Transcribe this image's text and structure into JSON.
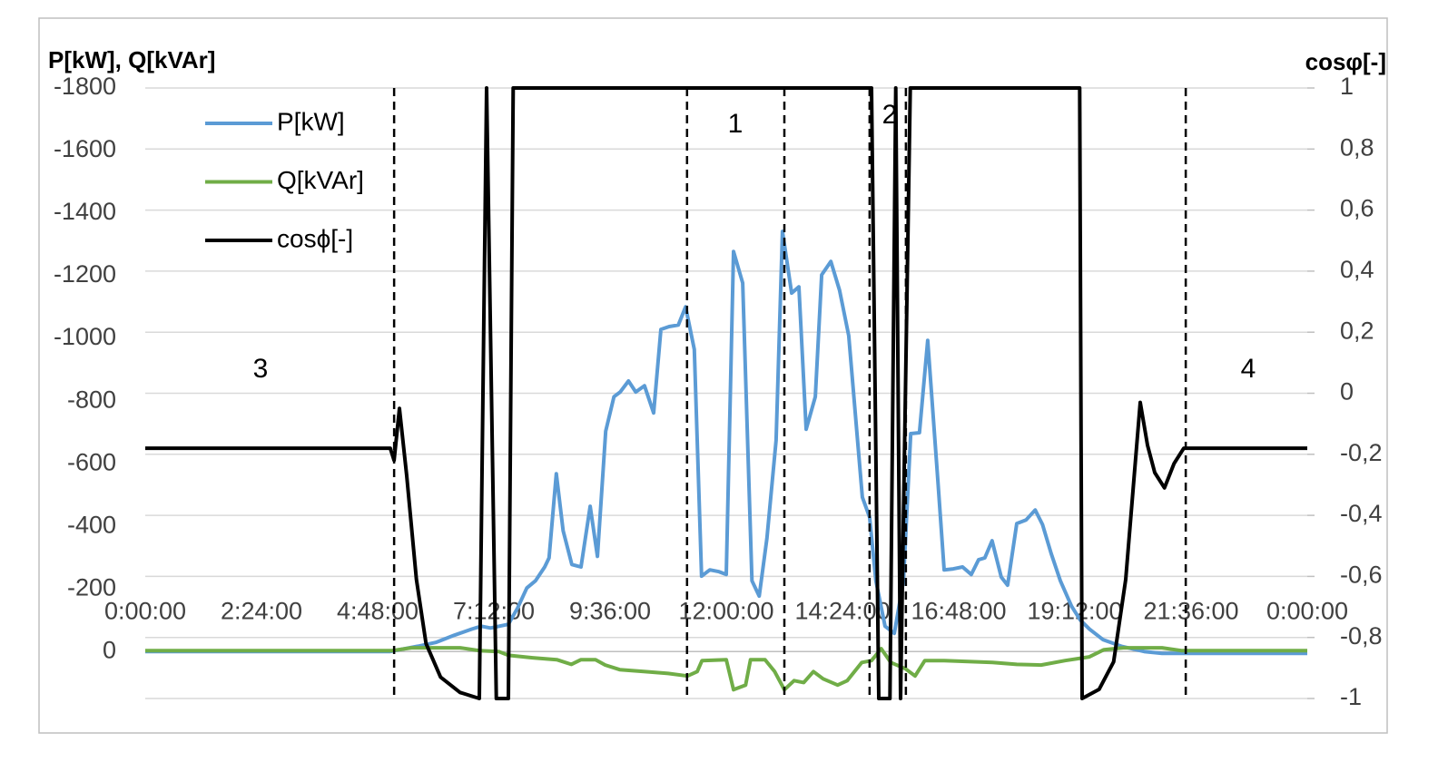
{
  "chart_data": {
    "type": "line",
    "y_label": "P[kW], Q[kVAr]",
    "y2_label": "cosφ[-]",
    "xlim": [
      0,
      24
    ],
    "xticks": [
      {
        "value": 0,
        "label": "0:00:00"
      },
      {
        "value": 2.4,
        "label": "2:24:00"
      },
      {
        "value": 4.8,
        "label": "4:48:00"
      },
      {
        "value": 7.2,
        "label": "7:12:00"
      },
      {
        "value": 9.6,
        "label": "9:36:00"
      },
      {
        "value": 12,
        "label": "12:00:00"
      },
      {
        "value": 14.4,
        "label": "14:24:00"
      },
      {
        "value": 16.8,
        "label": "16:48:00"
      },
      {
        "value": 19.2,
        "label": "19:12:00"
      },
      {
        "value": 21.6,
        "label": "21:36:00"
      },
      {
        "value": 24,
        "label": "0:00:00"
      }
    ],
    "ylim": [
      -1800,
      150
    ],
    "y_reversed": true,
    "yticks": [
      -1800,
      -1600,
      -1400,
      -1200,
      -1000,
      -800,
      -600,
      -400,
      -200,
      0
    ],
    "y2lim": [
      -1,
      1
    ],
    "y2ticks": [
      1,
      {
        "value": 0.8,
        "label": "0,8"
      },
      {
        "value": 0.6,
        "label": "0,6"
      },
      {
        "value": 0.4,
        "label": "0,4"
      },
      {
        "value": 0.2,
        "label": "0,2"
      },
      0,
      {
        "value": -0.2,
        "label": "-0,2"
      },
      {
        "value": -0.4,
        "label": "-0,4"
      },
      {
        "value": -0.6,
        "label": "-0,6"
      },
      {
        "value": -0.8,
        "label": "-0,8"
      },
      -1
    ],
    "grid": true,
    "legend": "upper left",
    "series": [
      {
        "name": "P[kW]",
        "color": "#5b9bd5",
        "x": [
          0,
          5.06,
          5.25,
          5.63,
          6.0,
          6.38,
          6.75,
          6.94,
          7.13,
          7.31,
          7.5,
          7.69,
          7.88,
          8.06,
          8.25,
          8.34,
          8.49,
          8.63,
          8.81,
          9.0,
          9.19,
          9.34,
          9.51,
          9.68,
          9.81,
          9.98,
          10.13,
          10.31,
          10.5,
          10.65,
          10.82,
          11.01,
          11.16,
          11.34,
          11.49,
          11.66,
          11.85,
          12.0,
          12.15,
          12.34,
          12.53,
          12.68,
          12.84,
          13.03,
          13.16,
          13.35,
          13.5,
          13.65,
          13.84,
          13.97,
          14.16,
          14.34,
          14.53,
          14.81,
          14.96,
          15.09,
          15.28,
          15.47,
          15.66,
          15.81,
          15.99,
          16.16,
          16.37,
          16.5,
          16.69,
          16.88,
          17.06,
          17.21,
          17.34,
          17.49,
          17.68,
          17.81,
          18.0,
          18.19,
          18.38,
          18.53,
          18.71,
          18.9,
          19.13,
          19.31,
          19.5,
          19.78,
          20.16,
          20.63,
          21.0,
          21.38,
          24
        ],
        "values": [
          0,
          0,
          -6,
          -17,
          -29,
          -52,
          -72,
          -81,
          -75,
          -81,
          -87,
          -139,
          -203,
          -226,
          -270,
          -299,
          -568,
          -386,
          -278,
          -270,
          -464,
          -304,
          -704,
          -814,
          -829,
          -864,
          -829,
          -849,
          -762,
          -1029,
          -1038,
          -1043,
          -1101,
          -965,
          -241,
          -261,
          -255,
          -246,
          -1278,
          -1177,
          -226,
          -177,
          -362,
          -675,
          -1342,
          -1145,
          -1165,
          -710,
          -814,
          -1203,
          -1246,
          -1154,
          -1009,
          -493,
          -429,
          -226,
          -81,
          -58,
          -226,
          -696,
          -699,
          -994,
          -545,
          -261,
          -264,
          -270,
          -246,
          -293,
          -299,
          -354,
          -238,
          -212,
          -409,
          -420,
          -452,
          -406,
          -313,
          -226,
          -145,
          -101,
          -72,
          -38,
          -17,
          0,
          6,
          6,
          6
        ]
      },
      {
        "name": "Q[kVAr]",
        "color": "#70ad47",
        "x": [
          0,
          5.1,
          5.5,
          6.5,
          6.9,
          7.3,
          7.5,
          8.0,
          8.5,
          8.8,
          9.0,
          9.3,
          9.5,
          9.8,
          10.3,
          10.8,
          11.2,
          11.4,
          11.5,
          12.0,
          12.15,
          12.4,
          12.5,
          12.8,
          13.0,
          13.2,
          13.4,
          13.6,
          13.8,
          14.0,
          14.3,
          14.5,
          14.8,
          15.0,
          15.2,
          15.4,
          15.7,
          15.9,
          16.1,
          16.5,
          17,
          17.5,
          18,
          18.5,
          19,
          19.5,
          19.8,
          20.2,
          20.6,
          21.0,
          21.4,
          24
        ],
        "values": [
          -3,
          -3,
          -12,
          -12,
          -3,
          0,
          12,
          20,
          26,
          41,
          26,
          26,
          43,
          58,
          64,
          70,
          78,
          64,
          29,
          26,
          122,
          107,
          26,
          26,
          64,
          122,
          93,
          99,
          64,
          87,
          107,
          93,
          35,
          29,
          -9,
          35,
          55,
          78,
          29,
          29,
          32,
          35,
          41,
          43,
          29,
          17,
          -6,
          -12,
          -12,
          -12,
          -3,
          -3
        ]
      },
      {
        "name": "cosϕ[-]",
        "color": "#000000",
        "axis": "y2",
        "x": [
          0,
          1.5,
          3,
          4.5,
          5.06,
          5.14,
          5.25,
          5.4,
          5.6,
          5.8,
          6.1,
          6.5,
          6.9,
          7.05,
          7.25,
          7.5,
          7.6,
          9,
          11,
          13,
          15.0,
          15.15,
          15.38,
          15.5,
          15.6,
          15.8,
          17,
          19.3,
          19.35,
          19.7,
          20.0,
          20.25,
          20.4,
          20.55,
          20.7,
          20.85,
          21.05,
          21.25,
          21.45,
          23,
          24
        ],
        "values": [
          -0.18,
          -0.18,
          -0.18,
          -0.18,
          -0.18,
          -0.22,
          -0.05,
          -0.27,
          -0.61,
          -0.82,
          -0.93,
          -0.98,
          -1,
          1,
          -1,
          -1,
          1,
          1,
          1,
          1,
          1,
          -1,
          -1,
          1,
          -1,
          1,
          1,
          1,
          -1,
          -0.97,
          -0.88,
          -0.61,
          -0.32,
          -0.03,
          -0.17,
          -0.26,
          -0.31,
          -0.23,
          -0.18,
          -0.18,
          -0.18
        ]
      }
    ],
    "vertical_lines": [
      5.14,
      11.19,
      13.2,
      14.96,
      15.71,
      21.49
    ],
    "annotations": [
      "3",
      "1",
      "2",
      "4"
    ]
  }
}
